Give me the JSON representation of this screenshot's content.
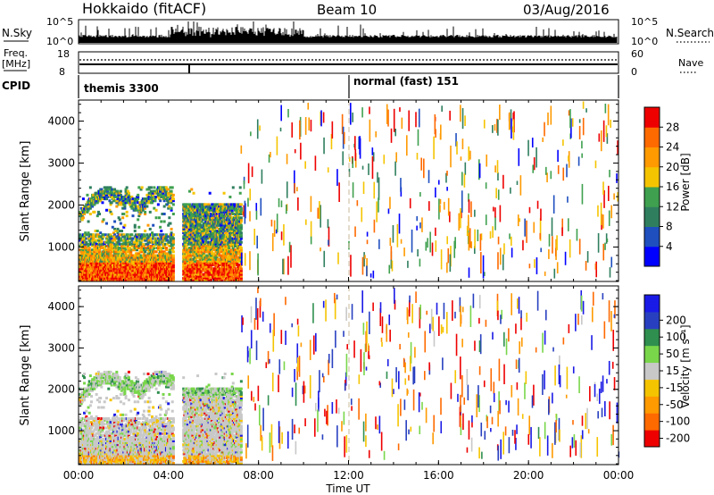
{
  "header": {
    "station": "Hokkaido (fitACF)",
    "beam": "Beam 10",
    "date": "03/Aug/2016"
  },
  "noise_panel": {
    "left_label": "N.Sky",
    "right_label": "N.Search",
    "tick_top": "10^5",
    "tick_bottom": "10^0"
  },
  "freq_panel": {
    "left_label": "Freq.",
    "left_unit": "[MHz]",
    "left_ticks": [
      "18",
      "8"
    ],
    "right_label": "Nave",
    "right_ticks": [
      "60",
      "0"
    ]
  },
  "cpid_panel": {
    "label": "CPID",
    "modes": [
      {
        "name": "themis 3300",
        "start_hour": 0
      },
      {
        "name": "normal (fast) 151",
        "start_hour": 12
      }
    ]
  },
  "legend_colors": {
    "power": [
      "#0000ff",
      "#1f4fbf",
      "#2f7f5f",
      "#3fa04f",
      "#f5c400",
      "#ff9a00",
      "#ff6a00",
      "#ee0000"
    ],
    "velocity": [
      "#ee0000",
      "#ff6a00",
      "#ff9a00",
      "#f5c400",
      "#c8c8c8",
      "#79d64a",
      "#2f8f4f",
      "#2840c0",
      "#1a1ae6"
    ]
  },
  "chart_data": [
    {
      "type": "heatmap",
      "name": "power",
      "ylabel": "Slant Range [km]",
      "xlabel": "Time UT",
      "xlim": [
        0,
        24
      ],
      "ylim": [
        180,
        4500
      ],
      "x_ticks": [
        "00:00",
        "04:00",
        "08:00",
        "12:00",
        "16:00",
        "20:00",
        "00:00"
      ],
      "y_ticks": [
        "1000",
        "2000",
        "3000",
        "4000"
      ],
      "colorbar": {
        "label": "Power [dB]",
        "range": [
          0,
          32
        ],
        "ticks": [
          "4",
          "8",
          "12",
          "16",
          "20",
          "24",
          "28"
        ]
      },
      "echo_regions": [
        {
          "hours": [
            0,
            7.2
          ],
          "range_km": [
            180,
            2300
          ],
          "description": "dense ground/ionospheric scatter, strongest below 1000 km"
        },
        {
          "hours": [
            7.2,
            24
          ],
          "range_km": [
            200,
            4500
          ],
          "description": "sparse scattered echoes"
        }
      ]
    },
    {
      "type": "heatmap",
      "name": "velocity",
      "ylabel": "Slant Range [km]",
      "xlabel": "Time UT",
      "xlim": [
        0,
        24
      ],
      "ylim": [
        180,
        4500
      ],
      "x_ticks": [
        "00:00",
        "04:00",
        "08:00",
        "12:00",
        "16:00",
        "20:00",
        "00:00"
      ],
      "y_ticks": [
        "1000",
        "2000",
        "3000",
        "4000"
      ],
      "colorbar": {
        "label": "Velocity [m s⁻¹]",
        "range": [
          -250,
          250
        ],
        "ticks": [
          "200",
          "100",
          "50",
          "15",
          "-15",
          "-50",
          "-100",
          "-200"
        ]
      },
      "echo_regions": [
        {
          "hours": [
            0,
            7.2
          ],
          "range_km": [
            180,
            2300
          ],
          "description": "mostly ground scatter (grey), green near 2000 km"
        },
        {
          "hours": [
            7.2,
            24
          ],
          "range_km": [
            200,
            4500
          ],
          "description": "sparse red/blue scattered echoes"
        }
      ]
    }
  ]
}
